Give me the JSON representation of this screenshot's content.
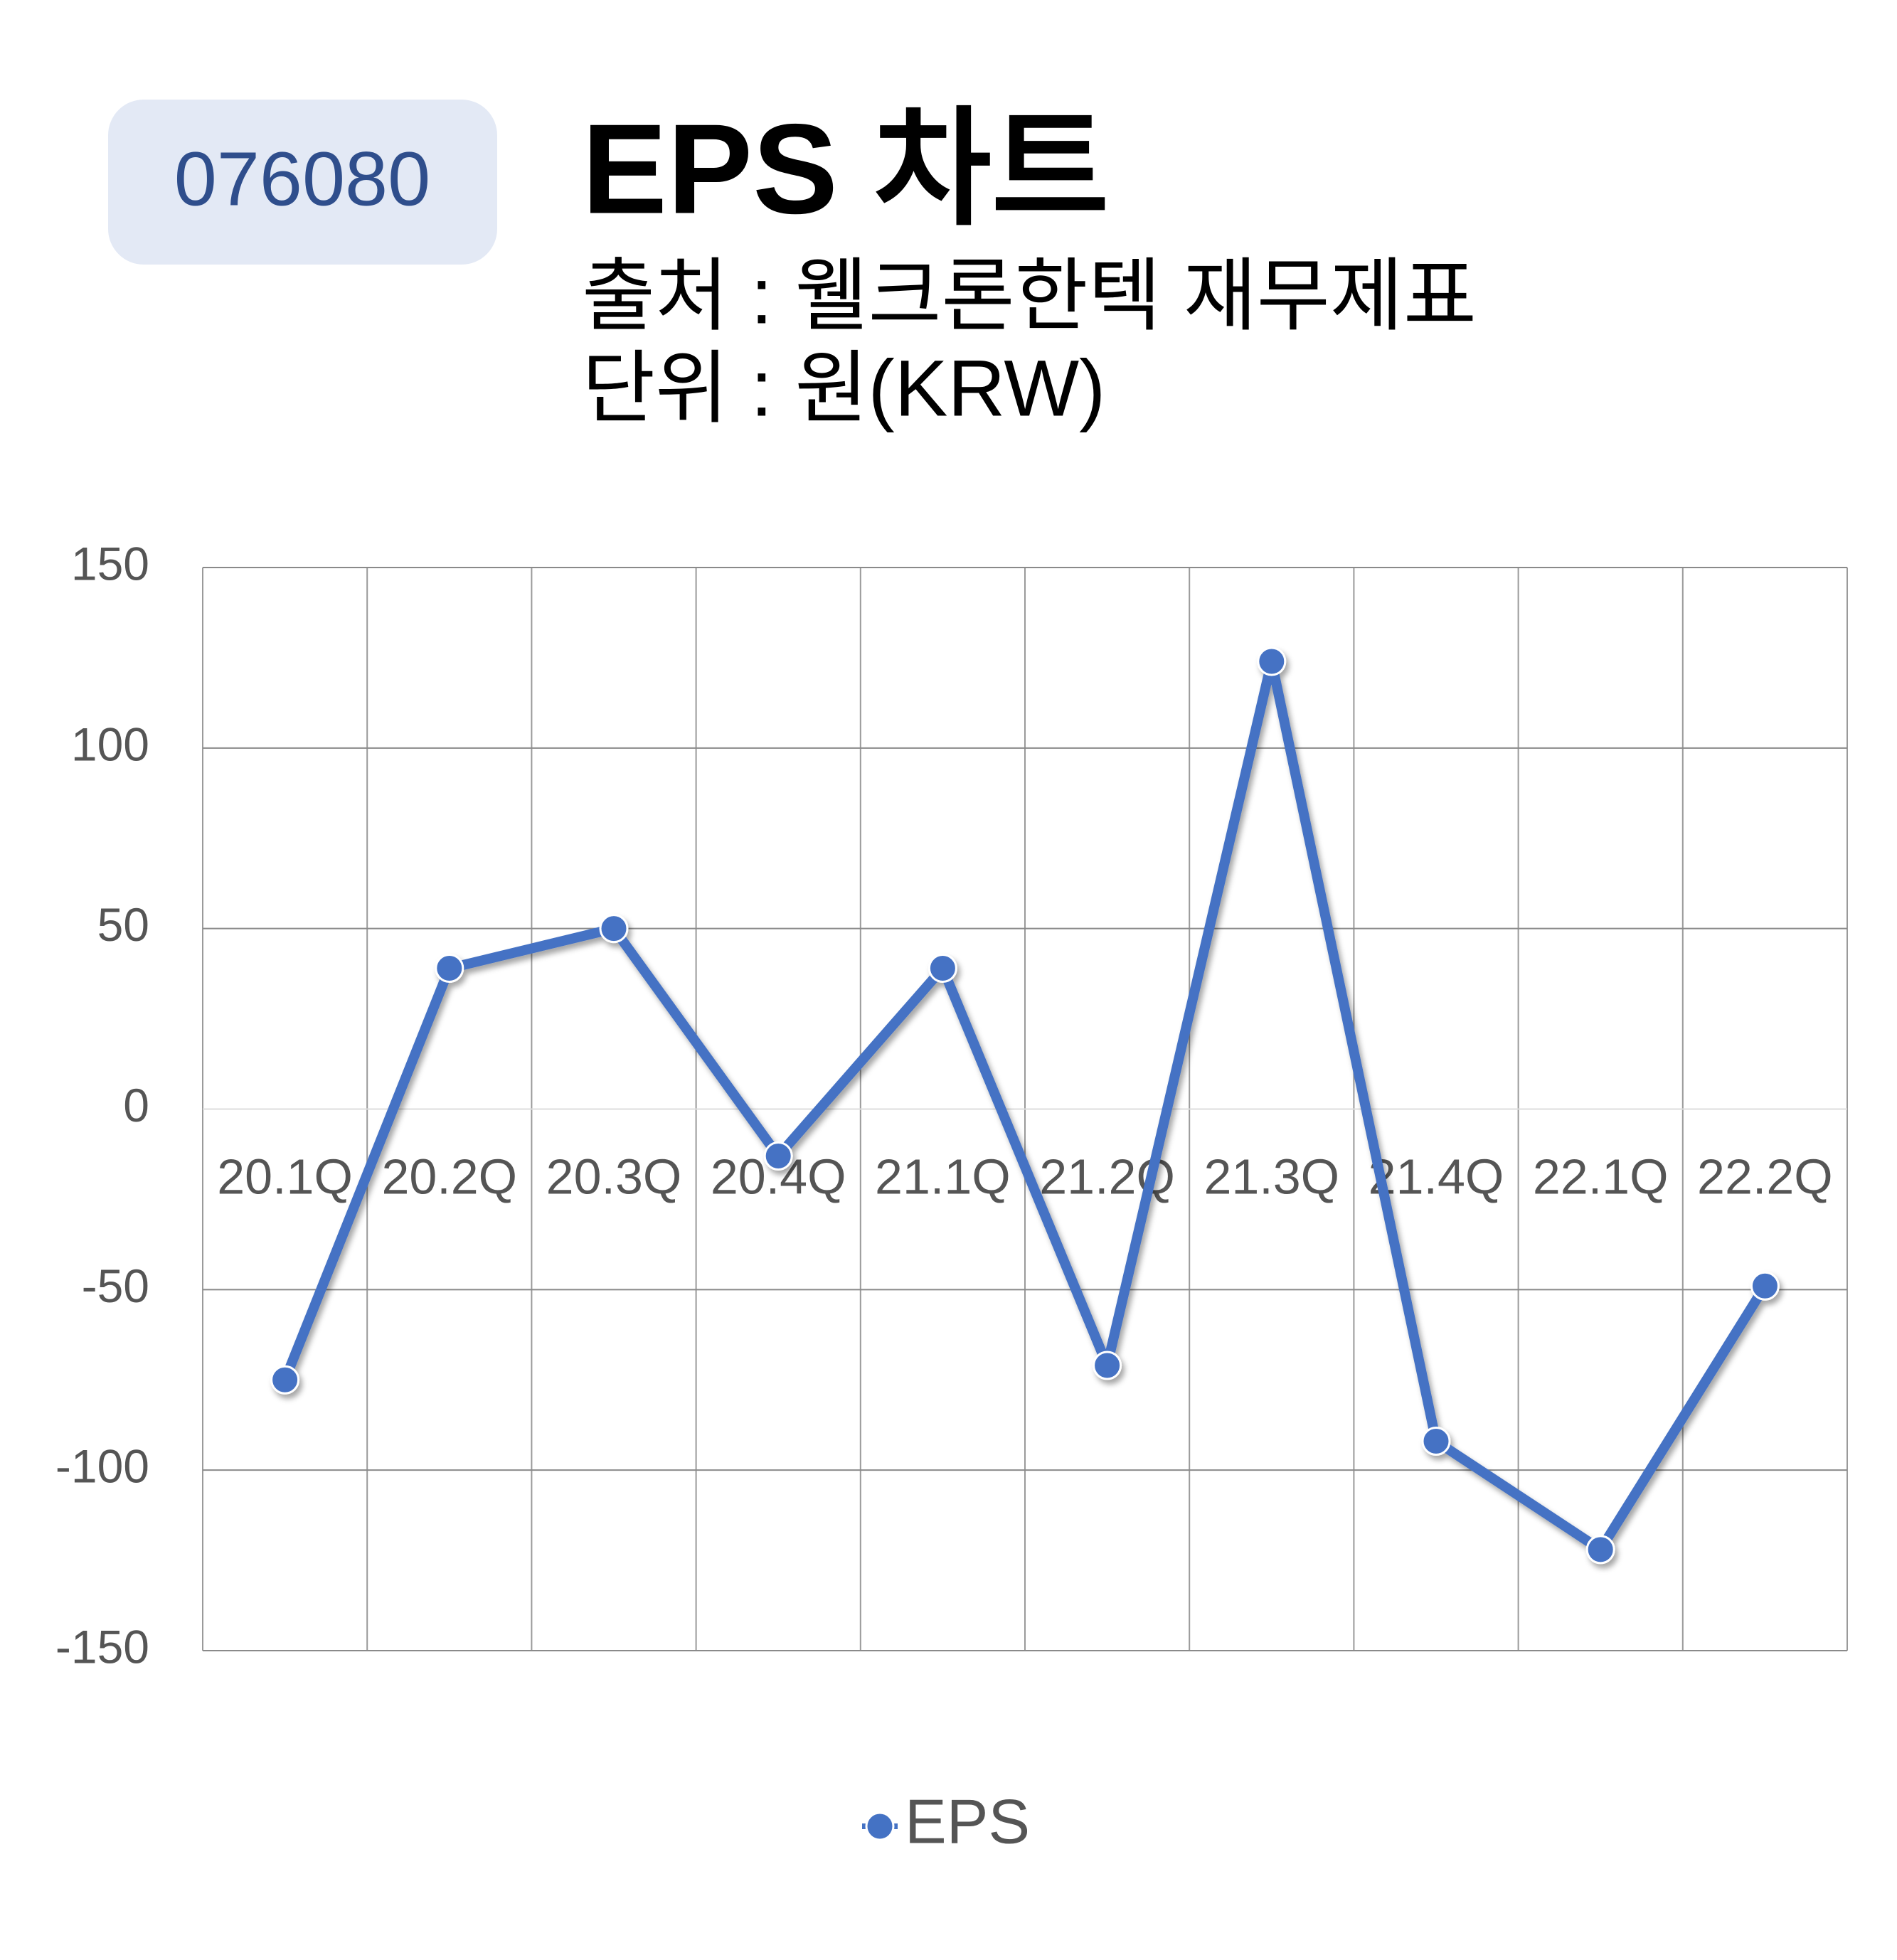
{
  "chart_data": {
    "type": "line",
    "code": "076080",
    "title": "EPS 차트",
    "subtitles": [
      "출처 : 웰크론한텍 재무제표",
      "단위 : 원(KRW)"
    ],
    "categories": [
      "20.1Q",
      "20.2Q",
      "20.3Q",
      "20.4Q",
      "21.1Q",
      "21.2Q",
      "21.3Q",
      "21.4Q",
      "22.1Q",
      "22.2Q"
    ],
    "series": [
      {
        "name": "EPS",
        "color": "#4472c4",
        "values": [
          -75,
          39,
          50,
          -13,
          39,
          -71,
          124,
          -92,
          -122,
          -49
        ]
      }
    ],
    "ylim": [
      -150,
      150
    ],
    "yticks": [
      -150,
      -100,
      -50,
      0,
      50,
      100,
      150
    ],
    "grid": true,
    "legend": "bottom"
  }
}
